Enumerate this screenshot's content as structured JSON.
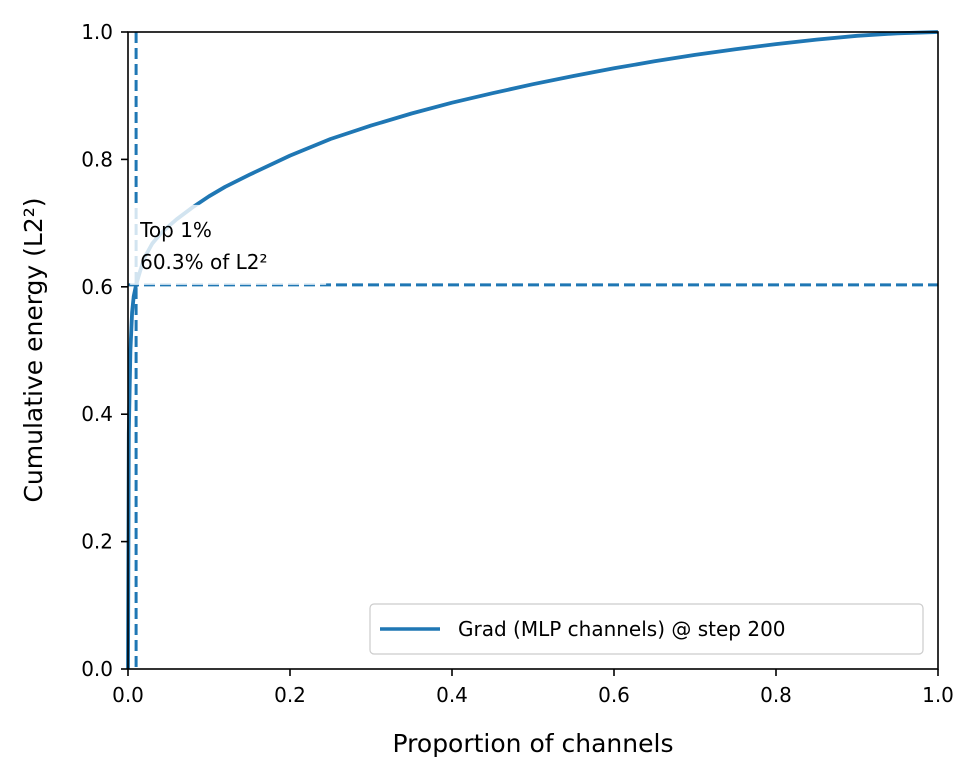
{
  "chart_data": {
    "type": "line",
    "title": "",
    "xlabel": "Proportion of channels",
    "ylabel": "Cumulative energy (L2²)",
    "xlim": [
      0.0,
      1.0
    ],
    "ylim": [
      0.0,
      1.0
    ],
    "xticks": [
      0.0,
      0.2,
      0.4,
      0.6,
      0.8,
      1.0
    ],
    "xtick_labels": [
      "0.0",
      "0.2",
      "0.4",
      "0.6",
      "0.8",
      "1.0"
    ],
    "yticks": [
      0.0,
      0.2,
      0.4,
      0.6,
      0.8,
      1.0
    ],
    "ytick_labels": [
      "0.0",
      "0.2",
      "0.4",
      "0.6",
      "0.8",
      "1.0"
    ],
    "grid": false,
    "legend_position": "lower-right",
    "series": [
      {
        "name": "Grad (MLP channels) @ step 200",
        "color": "#1f77b4",
        "x": [
          0.0,
          0.001,
          0.003,
          0.005,
          0.007,
          0.01,
          0.015,
          0.02,
          0.03,
          0.04,
          0.05,
          0.06,
          0.08,
          0.1,
          0.12,
          0.15,
          0.2,
          0.25,
          0.3,
          0.35,
          0.4,
          0.45,
          0.5,
          0.55,
          0.6,
          0.65,
          0.7,
          0.75,
          0.8,
          0.85,
          0.9,
          0.95,
          1.0
        ],
        "y": [
          0.0,
          0.37,
          0.5,
          0.56,
          0.585,
          0.603,
          0.625,
          0.645,
          0.668,
          0.683,
          0.695,
          0.706,
          0.725,
          0.742,
          0.757,
          0.776,
          0.806,
          0.832,
          0.853,
          0.872,
          0.889,
          0.904,
          0.918,
          0.931,
          0.943,
          0.954,
          0.964,
          0.973,
          0.981,
          0.988,
          0.994,
          0.998,
          1.0
        ]
      }
    ],
    "reference_lines": [
      {
        "orientation": "vertical",
        "value": 0.01,
        "style": "dashed",
        "color": "#1f77b4"
      },
      {
        "orientation": "horizontal",
        "value": 0.603,
        "style": "dashed",
        "color": "#1f77b4"
      }
    ],
    "annotation": {
      "lines": [
        "Top 1%",
        "60.3% of L2²"
      ],
      "x": 0.01,
      "y": 0.603
    }
  }
}
